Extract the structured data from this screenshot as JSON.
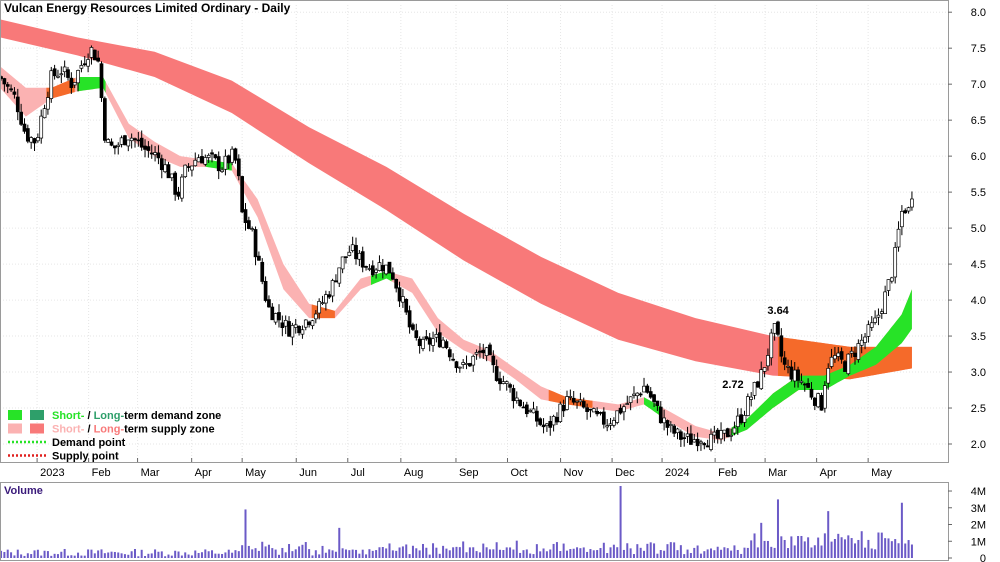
{
  "chart_data": {
    "type": "candlestick",
    "title": "Vulcan Energy Resources Limited Ordinary - Daily",
    "y_ticks": [
      "2.0",
      "2.5",
      "3.0",
      "3.5",
      "4.0",
      "4.5",
      "5.0",
      "5.5",
      "6.0",
      "6.5",
      "7.0",
      "7.5",
      "8.0"
    ],
    "ylim": [
      1.75,
      8.1
    ],
    "x_ticks": [
      {
        "label": "2023",
        "x": 0.72
      },
      {
        "label": "Feb",
        "x": 1.72
      },
      {
        "label": "Mar",
        "x": 2.67
      },
      {
        "label": "Apr",
        "x": 3.72
      },
      {
        "label": "May",
        "x": 4.7
      },
      {
        "label": "Jun",
        "x": 5.75
      },
      {
        "label": "Jul",
        "x": 6.75
      },
      {
        "label": "Aug",
        "x": 7.78
      },
      {
        "label": "Sep",
        "x": 8.85
      },
      {
        "label": "Oct",
        "x": 9.85
      },
      {
        "label": "Nov",
        "x": 10.88
      },
      {
        "label": "Dec",
        "x": 11.88
      },
      {
        "label": "2024",
        "x": 12.85
      },
      {
        "label": "Feb",
        "x": 13.88
      },
      {
        "label": "Mar",
        "x": 14.85
      },
      {
        "label": "Apr",
        "x": 15.85
      },
      {
        "label": "May",
        "x": 16.85
      }
    ],
    "xlim": [
      0,
      18.4
    ],
    "price_path": [
      [
        0.0,
        7.1
      ],
      [
        0.3,
        6.8
      ],
      [
        0.5,
        6.3
      ],
      [
        0.7,
        6.2
      ],
      [
        0.85,
        6.7
      ],
      [
        1.0,
        7.1
      ],
      [
        1.2,
        7.2
      ],
      [
        1.4,
        7.0
      ],
      [
        1.6,
        7.3
      ],
      [
        1.75,
        7.5
      ],
      [
        1.9,
        7.35
      ],
      [
        2.05,
        6.2
      ],
      [
        2.2,
        6.1
      ],
      [
        2.5,
        6.3
      ],
      [
        2.8,
        6.1
      ],
      [
        3.05,
        6.0
      ],
      [
        3.25,
        5.8
      ],
      [
        3.45,
        5.45
      ],
      [
        3.6,
        5.8
      ],
      [
        3.85,
        6.0
      ],
      [
        4.1,
        5.95
      ],
      [
        4.3,
        5.85
      ],
      [
        4.5,
        6.0
      ],
      [
        4.6,
        5.9
      ],
      [
        4.7,
        5.2
      ],
      [
        4.9,
        4.9
      ],
      [
        5.05,
        4.4
      ],
      [
        5.2,
        3.9
      ],
      [
        5.4,
        3.75
      ],
      [
        5.6,
        3.6
      ],
      [
        5.8,
        3.65
      ],
      [
        6.0,
        3.75
      ],
      [
        6.2,
        3.9
      ],
      [
        6.45,
        4.2
      ],
      [
        6.6,
        4.5
      ],
      [
        6.8,
        4.7
      ],
      [
        7.0,
        4.55
      ],
      [
        7.2,
        4.45
      ],
      [
        7.4,
        4.5
      ],
      [
        7.6,
        4.4
      ],
      [
        7.8,
        4.0
      ],
      [
        8.0,
        3.5
      ],
      [
        8.2,
        3.35
      ],
      [
        8.4,
        3.45
      ],
      [
        8.6,
        3.45
      ],
      [
        8.8,
        3.2
      ],
      [
        9.0,
        3.05
      ],
      [
        9.2,
        3.2
      ],
      [
        9.4,
        3.3
      ],
      [
        9.6,
        3.0
      ],
      [
        9.8,
        2.85
      ],
      [
        10.0,
        2.65
      ],
      [
        10.2,
        2.5
      ],
      [
        10.4,
        2.35
      ],
      [
        10.6,
        2.2
      ],
      [
        10.8,
        2.4
      ],
      [
        11.0,
        2.6
      ],
      [
        11.2,
        2.55
      ],
      [
        11.4,
        2.45
      ],
      [
        11.6,
        2.35
      ],
      [
        11.8,
        2.3
      ],
      [
        12.0,
        2.45
      ],
      [
        12.3,
        2.65
      ],
      [
        12.5,
        2.8
      ],
      [
        12.6,
        2.7
      ],
      [
        12.8,
        2.4
      ],
      [
        13.0,
        2.2
      ],
      [
        13.2,
        2.1
      ],
      [
        13.4,
        2.05
      ],
      [
        13.6,
        2.1
      ],
      [
        13.8,
        2.05
      ],
      [
        14.0,
        2.08
      ],
      [
        14.2,
        2.2
      ],
      [
        14.4,
        2.4
      ],
      [
        14.6,
        2.7
      ],
      [
        14.8,
        3.0
      ],
      [
        14.95,
        3.4
      ],
      [
        15.05,
        3.6
      ],
      [
        15.2,
        3.1
      ],
      [
        15.4,
        2.95
      ],
      [
        15.6,
        2.85
      ],
      [
        15.8,
        2.65
      ],
      [
        15.95,
        2.55
      ],
      [
        16.05,
        3.1
      ],
      [
        16.2,
        3.2
      ],
      [
        16.4,
        3.1
      ],
      [
        16.6,
        3.3
      ],
      [
        16.8,
        3.5
      ],
      [
        17.0,
        3.7
      ],
      [
        17.2,
        4.1
      ],
      [
        17.35,
        4.5
      ],
      [
        17.45,
        5.0
      ],
      [
        17.55,
        5.4
      ],
      [
        17.6,
        5.1
      ],
      [
        17.7,
        5.5
      ]
    ],
    "series": [
      {
        "name": "Long-term zone",
        "upper": [
          [
            0.0,
            7.9
          ],
          [
            1.5,
            7.65
          ],
          [
            3.0,
            7.45
          ],
          [
            4.5,
            7.05
          ],
          [
            6.0,
            6.4
          ],
          [
            7.5,
            5.85
          ],
          [
            9.0,
            5.2
          ],
          [
            10.5,
            4.6
          ],
          [
            12.0,
            4.1
          ],
          [
            13.5,
            3.75
          ],
          [
            15.0,
            3.5
          ],
          [
            16.5,
            3.35
          ],
          [
            17.7,
            3.35
          ]
        ],
        "lower": [
          [
            0.0,
            7.65
          ],
          [
            1.5,
            7.4
          ],
          [
            3.0,
            7.1
          ],
          [
            4.5,
            6.6
          ],
          [
            6.0,
            5.9
          ],
          [
            7.5,
            5.25
          ],
          [
            9.0,
            4.55
          ],
          [
            10.5,
            3.95
          ],
          [
            12.0,
            3.45
          ],
          [
            13.5,
            3.15
          ],
          [
            15.0,
            2.95
          ],
          [
            16.5,
            2.9
          ],
          [
            17.7,
            3.05
          ]
        ],
        "color": "#f87979",
        "demand_color": "#f56a2a"
      },
      {
        "name": "Short-term zone",
        "upper": [
          [
            0.0,
            7.25
          ],
          [
            0.5,
            6.95
          ],
          [
            1.0,
            6.95
          ],
          [
            1.5,
            7.1
          ],
          [
            2.0,
            7.1
          ],
          [
            2.5,
            6.45
          ],
          [
            3.0,
            6.2
          ],
          [
            3.5,
            6.0
          ],
          [
            4.0,
            5.95
          ],
          [
            4.5,
            5.9
          ],
          [
            5.0,
            5.4
          ],
          [
            5.5,
            4.5
          ],
          [
            6.0,
            3.95
          ],
          [
            6.5,
            3.85
          ],
          [
            7.0,
            4.3
          ],
          [
            7.5,
            4.4
          ],
          [
            8.0,
            4.3
          ],
          [
            8.5,
            3.75
          ],
          [
            9.0,
            3.45
          ],
          [
            9.5,
            3.3
          ],
          [
            10.0,
            3.05
          ],
          [
            10.5,
            2.8
          ],
          [
            11.0,
            2.65
          ],
          [
            11.5,
            2.6
          ],
          [
            12.0,
            2.55
          ],
          [
            12.5,
            2.65
          ],
          [
            13.0,
            2.45
          ],
          [
            13.5,
            2.25
          ],
          [
            14.0,
            2.15
          ],
          [
            14.5,
            2.35
          ],
          [
            15.0,
            2.7
          ],
          [
            15.5,
            2.95
          ],
          [
            16.0,
            2.95
          ],
          [
            16.5,
            3.1
          ],
          [
            17.0,
            3.35
          ],
          [
            17.5,
            3.8
          ],
          [
            17.7,
            4.15
          ]
        ],
        "lower": [
          [
            0.0,
            6.95
          ],
          [
            0.5,
            6.55
          ],
          [
            1.0,
            6.8
          ],
          [
            1.5,
            6.9
          ],
          [
            2.0,
            6.95
          ],
          [
            2.5,
            6.25
          ],
          [
            3.0,
            6.0
          ],
          [
            3.5,
            5.85
          ],
          [
            4.0,
            5.85
          ],
          [
            4.5,
            5.8
          ],
          [
            5.0,
            5.15
          ],
          [
            5.5,
            4.15
          ],
          [
            6.0,
            3.75
          ],
          [
            6.5,
            3.75
          ],
          [
            7.0,
            4.15
          ],
          [
            7.5,
            4.3
          ],
          [
            8.0,
            4.1
          ],
          [
            8.5,
            3.55
          ],
          [
            9.0,
            3.3
          ],
          [
            9.5,
            3.15
          ],
          [
            10.0,
            2.9
          ],
          [
            10.5,
            2.62
          ],
          [
            11.0,
            2.55
          ],
          [
            11.5,
            2.5
          ],
          [
            12.0,
            2.45
          ],
          [
            12.5,
            2.55
          ],
          [
            13.0,
            2.3
          ],
          [
            13.5,
            2.1
          ],
          [
            14.0,
            2.05
          ],
          [
            14.5,
            2.2
          ],
          [
            15.0,
            2.5
          ],
          [
            15.5,
            2.75
          ],
          [
            16.0,
            2.75
          ],
          [
            16.5,
            2.95
          ],
          [
            17.0,
            3.1
          ],
          [
            17.5,
            3.4
          ],
          [
            17.7,
            3.6
          ]
        ],
        "color": "#fbb2b2",
        "demand_color": "#27e327"
      }
    ],
    "annotations": [
      {
        "text": "3.64",
        "x": 15.05,
        "y": 3.64
      },
      {
        "text": "2.72",
        "x": 14.6,
        "y": 2.72
      }
    ],
    "volume": {
      "label": "Volume",
      "y_ticks": [
        "0",
        "1M",
        "2M",
        "3M",
        "4M"
      ],
      "ylim": [
        0,
        4.3
      ],
      "spikes": [
        {
          "x": 4.75,
          "v": 2.9
        },
        {
          "x": 12.05,
          "v": 4.5
        },
        {
          "x": 15.1,
          "v": 3.5
        },
        {
          "x": 16.1,
          "v": 2.8
        },
        {
          "x": 17.5,
          "v": 3.3
        },
        {
          "x": 6.6,
          "v": 1.8
        },
        {
          "x": 14.8,
          "v": 2.1
        },
        {
          "x": 16.7,
          "v": 1.6
        }
      ]
    },
    "legend": {
      "placement": "bottom-left",
      "items": [
        {
          "prefix": "Short-",
          "mid": " / ",
          "prefix2": "Long-",
          "suffix": "term demand zone",
          "c1": "#27e327",
          "c2": "#2e9f6a"
        },
        {
          "prefix": "Short-",
          "mid": " / ",
          "prefix2": "Long-",
          "suffix": "term supply zone",
          "c1": "#fbb2b2",
          "c2": "#f87979"
        },
        {
          "text": "Demand point",
          "dot": "#27e327"
        },
        {
          "text": "Supply point",
          "dot": "#e0201f"
        }
      ]
    }
  }
}
